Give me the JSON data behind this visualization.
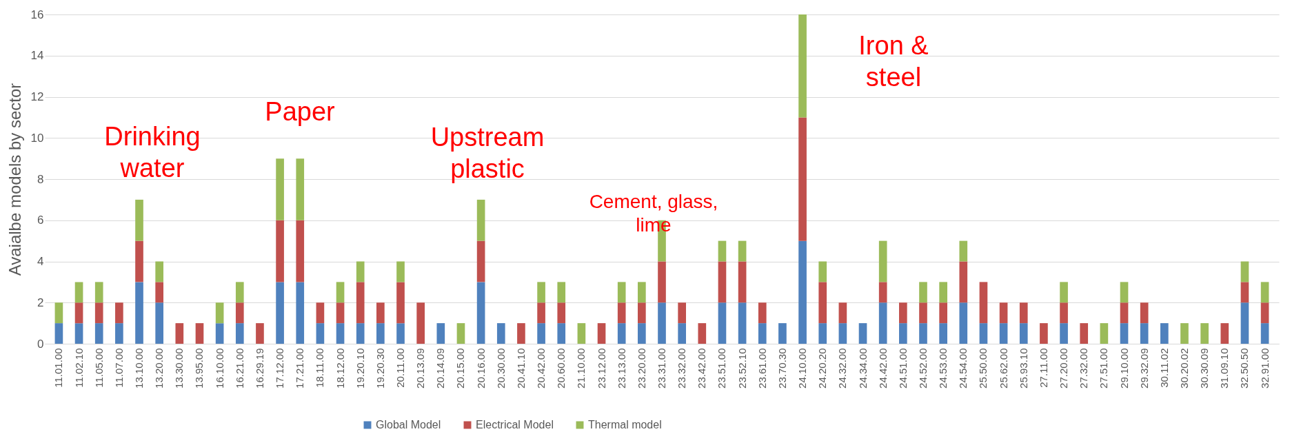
{
  "chart_data": {
    "type": "bar",
    "stacked": true,
    "ylabel": "Avaialbe models by sector",
    "categories": [
      "11.01.00",
      "11.02.10",
      "11.05.00",
      "11.07.00",
      "13.10.00",
      "13.20.00",
      "13.30.00",
      "13.95.00",
      "16.10.00",
      "16.21.00",
      "16.29.19",
      "17.12.00",
      "17.21.00",
      "18.11.00",
      "18.12.00",
      "19.20.10",
      "19.20.30",
      "20.11.00",
      "20.13.09",
      "20.14.09",
      "20.15.00",
      "20.16.00",
      "20.30.00",
      "20.41.10",
      "20.42.00",
      "20.60.00",
      "21.10.00",
      "23.12.00",
      "23.13.00",
      "23.20.00",
      "23.31.00",
      "23.32.00",
      "23.42.00",
      "23.51.00",
      "23.52.10",
      "23.61.00",
      "23.70.30",
      "24.10.00",
      "24.20.20",
      "24.32.00",
      "24.34.00",
      "24.42.00",
      "24.51.00",
      "24.52.00",
      "24.53.00",
      "24.54.00",
      "25.50.00",
      "25.62.00",
      "25.93.10",
      "27.11.00",
      "27.20.00",
      "27.32.00",
      "27.51.00",
      "29.10.00",
      "29.32.09",
      "30.11.02",
      "30.20.02",
      "30.30.09",
      "31.09.10",
      "32.50.50",
      "32.91.00"
    ],
    "series": [
      {
        "name": "Global Model",
        "color": "#4f81bd",
        "values": [
          1,
          1,
          1,
          1,
          3,
          2,
          0,
          0,
          1,
          1,
          0,
          3,
          3,
          1,
          1,
          1,
          1,
          1,
          0,
          1,
          0,
          3,
          1,
          0,
          1,
          1,
          0,
          0,
          1,
          1,
          2,
          1,
          0,
          2,
          2,
          1,
          1,
          5,
          1,
          1,
          1,
          2,
          1,
          1,
          1,
          2,
          1,
          1,
          1,
          0,
          1,
          0,
          0,
          1,
          1,
          1,
          0,
          0,
          0,
          2,
          1
        ]
      },
      {
        "name": "Electrical Model",
        "color": "#c0504d",
        "values": [
          0,
          1,
          1,
          1,
          2,
          1,
          1,
          1,
          0,
          1,
          1,
          3,
          3,
          1,
          1,
          2,
          1,
          2,
          2,
          0,
          0,
          2,
          0,
          1,
          1,
          1,
          0,
          1,
          1,
          1,
          2,
          1,
          1,
          2,
          2,
          1,
          0,
          6,
          2,
          1,
          0,
          1,
          1,
          1,
          1,
          2,
          2,
          1,
          1,
          1,
          1,
          1,
          0,
          1,
          1,
          0,
          0,
          0,
          1,
          1,
          1
        ]
      },
      {
        "name": "Thermal model",
        "color": "#9bbb59",
        "values": [
          1,
          1,
          1,
          0,
          2,
          1,
          0,
          0,
          1,
          1,
          0,
          3,
          3,
          0,
          1,
          1,
          0,
          1,
          0,
          0,
          1,
          2,
          0,
          0,
          1,
          1,
          1,
          0,
          1,
          1,
          2,
          0,
          0,
          1,
          1,
          0,
          0,
          5,
          1,
          0,
          0,
          2,
          0,
          1,
          1,
          1,
          0,
          0,
          0,
          0,
          1,
          0,
          1,
          1,
          0,
          0,
          1,
          1,
          0,
          1,
          1
        ]
      }
    ],
    "ylim": [
      0,
      16
    ],
    "yticks": [
      0,
      2,
      4,
      6,
      8,
      10,
      12,
      14,
      16
    ],
    "grid": "y",
    "legend": "bottom",
    "annotations": [
      "Drinking\nwater",
      "Paper",
      "Upstream\nplastic",
      "Cement, glass,\nlime",
      "Iron &\nsteel"
    ]
  }
}
